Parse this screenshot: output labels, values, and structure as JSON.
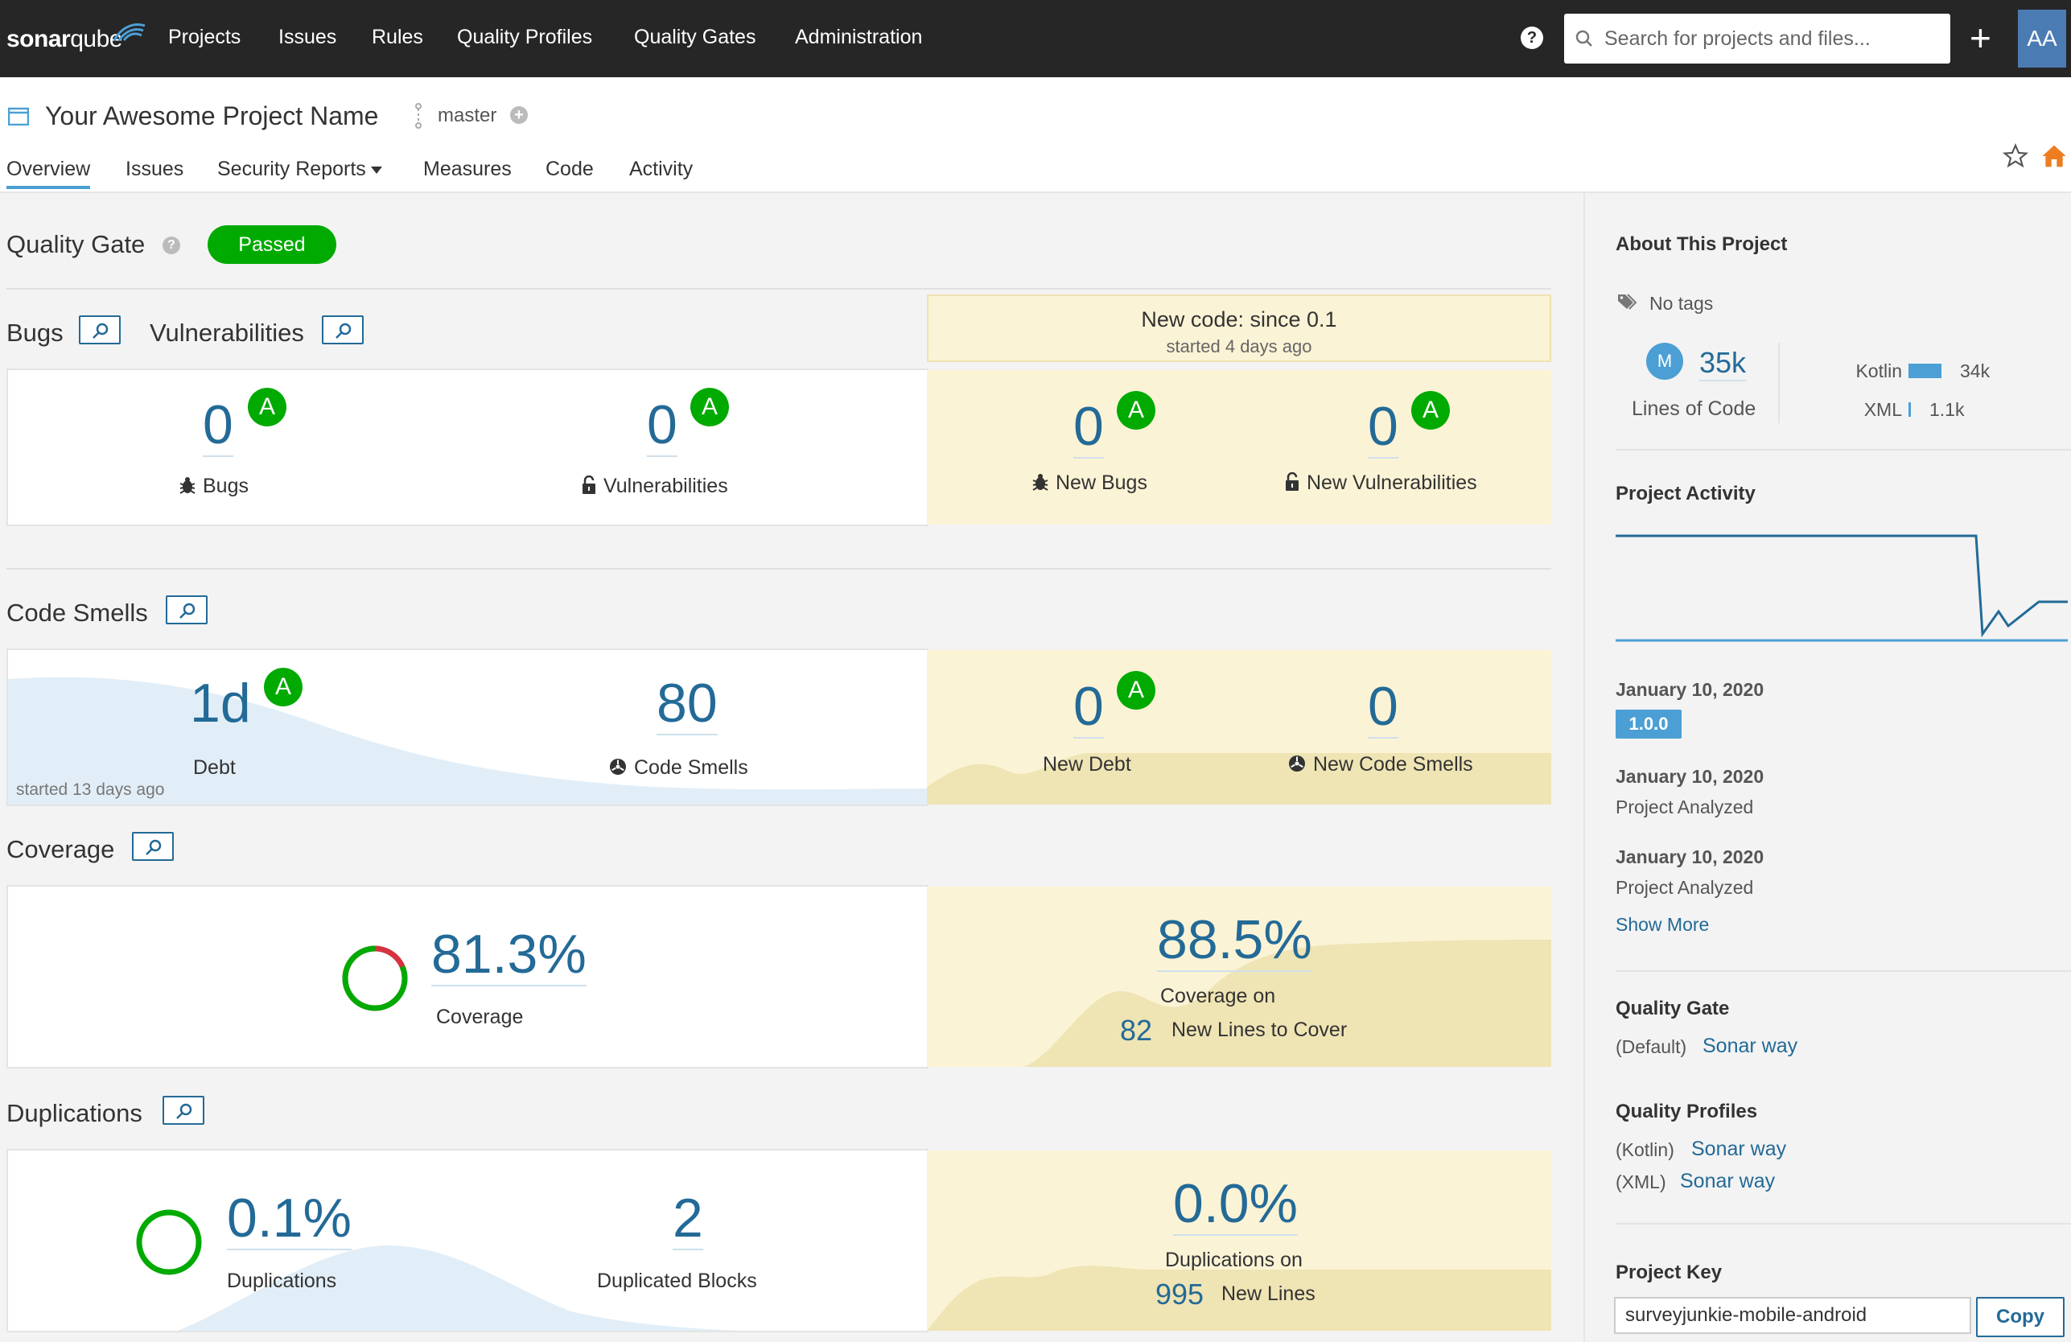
{
  "navbar": {
    "logo_bold": "sonar",
    "logo_light": "qube",
    "items": [
      "Projects",
      "Issues",
      "Rules",
      "Quality Profiles",
      "Quality Gates",
      "Administration"
    ],
    "help": "?",
    "search_placeholder": "Search for projects and files...",
    "plus": "+",
    "avatar": "AA"
  },
  "project": {
    "name": "Your Awesome Project Name",
    "branch": "master",
    "tabs": [
      "Overview",
      "Issues",
      "Security Reports",
      "Measures",
      "Code",
      "Activity"
    ]
  },
  "quality_gate": {
    "label": "Quality Gate",
    "status": "Passed"
  },
  "new_code": {
    "title": "New code: since 0.1",
    "started": "started 4 days ago"
  },
  "bugs_vulns": {
    "section_bugs": "Bugs",
    "section_vulns": "Vulnerabilities",
    "bugs": {
      "value": "0",
      "rating": "A",
      "label": "Bugs"
    },
    "vulns": {
      "value": "0",
      "rating": "A",
      "label": "Vulnerabilities"
    },
    "new_bugs": {
      "value": "0",
      "rating": "A",
      "label": "New Bugs"
    },
    "new_vulns": {
      "value": "0",
      "rating": "A",
      "label": "New Vulnerabilities"
    }
  },
  "code_smells": {
    "section": "Code Smells",
    "debt": {
      "value": "1d",
      "rating": "A",
      "label": "Debt"
    },
    "smells": {
      "value": "80",
      "label": "Code Smells"
    },
    "started": "started 13 days ago",
    "new_debt": {
      "value": "0",
      "rating": "A",
      "label": "New Debt"
    },
    "new_smells": {
      "value": "0",
      "label": "New Code Smells"
    }
  },
  "coverage": {
    "section": "Coverage",
    "value": "81.3%",
    "label": "Coverage",
    "new_value": "88.5%",
    "new_label": "Coverage on",
    "new_lines": "82",
    "new_lines_label": "New Lines to Cover"
  },
  "duplications": {
    "section": "Duplications",
    "value": "0.1%",
    "label": "Duplications",
    "blocks": "2",
    "blocks_label": "Duplicated Blocks",
    "new_value": "0.0%",
    "new_label": "Duplications on",
    "new_lines": "995",
    "new_lines_label": "New Lines"
  },
  "sidebar": {
    "about_title": "About This Project",
    "tags": "No tags",
    "loc_avatar": "M",
    "loc_value": "35k",
    "loc_label": "Lines of Code",
    "languages": [
      {
        "name": "Kotlin",
        "value": "34k",
        "fraction": 0.97
      },
      {
        "name": "XML",
        "value": "1.1k",
        "fraction": 0.03
      }
    ],
    "activity_title": "Project Activity",
    "events": [
      {
        "date": "January 10, 2020",
        "version": "1.0.0"
      },
      {
        "date": "January 10, 2020",
        "text": "Project Analyzed"
      },
      {
        "date": "January 10, 2020",
        "text": "Project Analyzed"
      }
    ],
    "show_more": "Show More",
    "qg_title": "Quality Gate",
    "qg_default": "(Default)",
    "qg_link": "Sonar way",
    "qp_title": "Quality Profiles",
    "profiles": [
      {
        "lang": "(Kotlin)",
        "name": "Sonar way"
      },
      {
        "lang": "(XML)",
        "name": "Sonar way"
      }
    ],
    "key_title": "Project Key",
    "key_value": "surveyjunkie-mobile-android",
    "copy": "Copy"
  },
  "colors": {
    "navbar": "#262626",
    "link": "#236a97",
    "passed": "#00aa00",
    "new_code_bg": "#fbf3d5",
    "chart_blue": "#4b9fd5"
  }
}
